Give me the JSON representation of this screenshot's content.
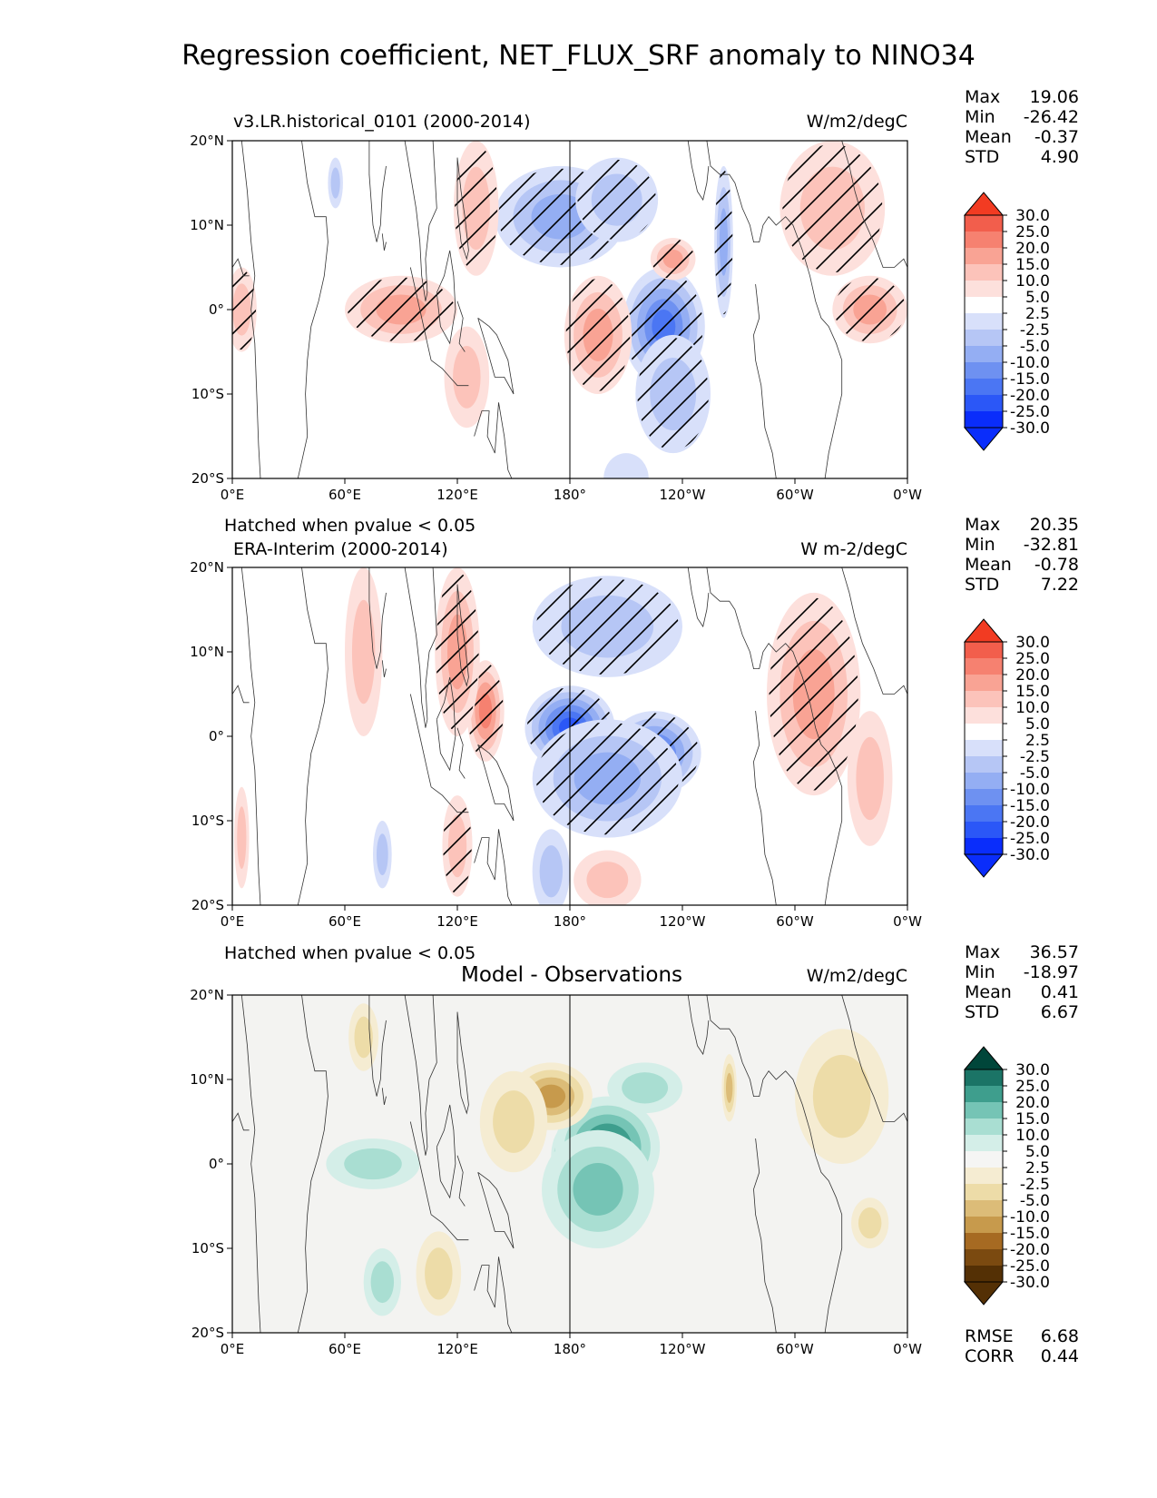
{
  "figure": {
    "title": "Regression coefficient, NET_FLUX_SRF anomaly to NINO34",
    "hatch_note": "Hatched when pvalue < 0.05"
  },
  "colors": {
    "diverging_red_blue": [
      "#0a2dfb",
      "#2b57f7",
      "#4b76f3",
      "#6e91f1",
      "#94aef3",
      "#b6c6f5",
      "#d8e0fa",
      "#ffffff",
      "#fde0dc",
      "#fcc3ba",
      "#f9a394",
      "#f68170",
      "#f25e4c",
      "#f23b22"
    ],
    "diverging_brown_teal": [
      "#543005",
      "#7b4a10",
      "#a66a22",
      "#c79a4c",
      "#dcbc78",
      "#eddca8",
      "#f5ecd2",
      "#f5f5f4",
      "#d4eee8",
      "#a9ded2",
      "#75c4b5",
      "#3e9e8d",
      "#1b7466",
      "#00463a"
    ],
    "coast": "#333333",
    "land_fill_diff": "#f3f3f1"
  },
  "panels": [
    {
      "title": "v3.LR.historical_0101 (2000-2014)",
      "units": "W/m2/degC",
      "stats": [
        {
          "label": "Max",
          "value": "19.06"
        },
        {
          "label": "Min",
          "value": "-26.42"
        },
        {
          "label": "Mean",
          "value": "-0.37"
        },
        {
          "label": "STD",
          "value": "4.90"
        }
      ]
    },
    {
      "title": "ERA-Interim (2000-2014)",
      "units": "W m-2/degC",
      "stats": [
        {
          "label": "Max",
          "value": "20.35"
        },
        {
          "label": "Min",
          "value": "-32.81"
        },
        {
          "label": "Mean",
          "value": "-0.78"
        },
        {
          "label": "STD",
          "value": "7.22"
        }
      ]
    },
    {
      "title": "Model - Observations",
      "units": "W/m2/degC",
      "stats": [
        {
          "label": "Max",
          "value": "36.57"
        },
        {
          "label": "Min",
          "value": "-18.97"
        },
        {
          "label": "Mean",
          "value": "0.41"
        },
        {
          "label": "STD",
          "value": "6.67"
        }
      ],
      "metrics": [
        {
          "label": "RMSE",
          "value": "6.68"
        },
        {
          "label": "CORR",
          "value": "0.44"
        }
      ]
    }
  ],
  "chart_data": [
    {
      "type": "heatmap",
      "title": "v3.LR.historical_0101 (2000-2014)",
      "units": "W/m2/degC",
      "x_range": [
        0,
        360
      ],
      "y_range": [
        -20,
        20
      ],
      "x_ticks": [
        "0°E",
        "60°E",
        "120°E",
        "180°",
        "120°W",
        "60°W",
        "0°W"
      ],
      "y_ticks": [
        "20°N",
        "10°N",
        "0°",
        "10°S",
        "20°S"
      ],
      "colorbar_levels": [
        "30.0",
        "25.0",
        "20.0",
        "15.0",
        "10.0",
        "5.0",
        "2.5",
        "-2.5",
        "-5.0",
        "-10.0",
        "-15.0",
        "-20.0",
        "-25.0",
        "-30.0"
      ],
      "hatched": true,
      "features": [
        {
          "lon": 230,
          "lat": -2,
          "value": -22,
          "rlon": 22,
          "rlat": 7
        },
        {
          "lon": 235,
          "lat": -10,
          "value": -8,
          "rlon": 20,
          "rlat": 7
        },
        {
          "lon": 175,
          "lat": 11,
          "value": -10,
          "rlon": 35,
          "rlat": 6
        },
        {
          "lon": 205,
          "lat": 13,
          "value": -9,
          "rlon": 22,
          "rlat": 5
        },
        {
          "lon": 262,
          "lat": 8,
          "value": -14,
          "rlon": 5,
          "rlat": 9
        },
        {
          "lon": 55,
          "lat": 15,
          "value": -5,
          "rlon": 4,
          "rlat": 3
        },
        {
          "lon": 210,
          "lat": -20,
          "value": -4,
          "rlon": 12,
          "rlat": 3
        },
        {
          "lon": 195,
          "lat": -3,
          "value": 10,
          "rlon": 18,
          "rlat": 7
        },
        {
          "lon": 235,
          "lat": 6,
          "value": 12,
          "rlon": 12,
          "rlat": 2.5
        },
        {
          "lon": 130,
          "lat": 12,
          "value": 9,
          "rlon": 12,
          "rlat": 8
        },
        {
          "lon": 90,
          "lat": 0,
          "value": 11,
          "rlon": 30,
          "rlat": 4
        },
        {
          "lon": 320,
          "lat": 12,
          "value": 9,
          "rlon": 28,
          "rlat": 8
        },
        {
          "lon": 340,
          "lat": 0,
          "value": 10,
          "rlon": 20,
          "rlat": 4
        },
        {
          "lon": 5,
          "lat": 0,
          "value": 9,
          "rlon": 8,
          "rlat": 5
        },
        {
          "lon": 125,
          "lat": -8,
          "value": 7,
          "rlon": 12,
          "rlat": 6
        }
      ]
    },
    {
      "type": "heatmap",
      "title": "ERA-Interim (2000-2014)",
      "units": "W m-2/degC",
      "x_range": [
        0,
        360
      ],
      "y_range": [
        -20,
        20
      ],
      "x_ticks": [
        "0°E",
        "60°E",
        "120°E",
        "180°",
        "120°W",
        "60°W",
        "0°W"
      ],
      "y_ticks": [
        "20°N",
        "10°N",
        "0°",
        "10°S",
        "20°S"
      ],
      "colorbar_levels": [
        "30.0",
        "25.0",
        "20.0",
        "15.0",
        "10.0",
        "5.0",
        "2.5",
        "-2.5",
        "-5.0",
        "-10.0",
        "-15.0",
        "-20.0",
        "-25.0",
        "-30.0"
      ],
      "hatched": true,
      "features": [
        {
          "lon": 180,
          "lat": 1,
          "value": -25,
          "rlon": 24,
          "rlat": 5
        },
        {
          "lon": 225,
          "lat": -2,
          "value": -22,
          "rlon": 25,
          "rlat": 5
        },
        {
          "lon": 200,
          "lat": -5,
          "value": -10,
          "rlon": 40,
          "rlat": 7
        },
        {
          "lon": 200,
          "lat": 13,
          "value": -8,
          "rlon": 40,
          "rlat": 6
        },
        {
          "lon": 170,
          "lat": -16,
          "value": -7,
          "rlon": 10,
          "rlat": 5
        },
        {
          "lon": 80,
          "lat": -14,
          "value": -5,
          "rlon": 5,
          "rlat": 4
        },
        {
          "lon": 135,
          "lat": 3,
          "value": 15,
          "rlon": 10,
          "rlat": 6
        },
        {
          "lon": 120,
          "lat": 10,
          "value": 10,
          "rlon": 12,
          "rlat": 10
        },
        {
          "lon": 70,
          "lat": 10,
          "value": 7,
          "rlon": 10,
          "rlat": 10
        },
        {
          "lon": 310,
          "lat": 5,
          "value": 11,
          "rlon": 25,
          "rlat": 12
        },
        {
          "lon": 340,
          "lat": -5,
          "value": 7,
          "rlon": 12,
          "rlat": 8
        },
        {
          "lon": 200,
          "lat": -17,
          "value": 6,
          "rlon": 18,
          "rlat": 3.5
        },
        {
          "lon": 120,
          "lat": -13,
          "value": 9,
          "rlon": 8,
          "rlat": 6
        },
        {
          "lon": 5,
          "lat": -12,
          "value": 7,
          "rlon": 4,
          "rlat": 6
        }
      ]
    },
    {
      "type": "heatmap",
      "title": "Model - Observations",
      "units": "W/m2/degC",
      "x_range": [
        0,
        360
      ],
      "y_range": [
        -20,
        20
      ],
      "x_ticks": [
        "0°E",
        "60°E",
        "120°E",
        "180°",
        "120°W",
        "60°W",
        "0°W"
      ],
      "y_ticks": [
        "20°N",
        "10°N",
        "0°",
        "10°S",
        "20°S"
      ],
      "colorbar_levels": [
        "30.0",
        "25.0",
        "20.0",
        "15.0",
        "10.0",
        "5.0",
        "2.5",
        "-2.5",
        "-5.0",
        "-10.0",
        "-15.0",
        "-20.0",
        "-25.0",
        "-30.0"
      ],
      "hatched": false,
      "features": [
        {
          "lon": 182,
          "lat": 1,
          "value": 33,
          "rlon": 12,
          "rlat": 4
        },
        {
          "lon": 200,
          "lat": 2,
          "value": 20,
          "rlon": 28,
          "rlat": 6
        },
        {
          "lon": 195,
          "lat": -3,
          "value": 10,
          "rlon": 30,
          "rlat": 7
        },
        {
          "lon": 75,
          "lat": 0,
          "value": 9,
          "rlon": 25,
          "rlat": 3
        },
        {
          "lon": 80,
          "lat": -14,
          "value": 6,
          "rlon": 10,
          "rlat": 4
        },
        {
          "lon": 220,
          "lat": 9,
          "value": 7,
          "rlon": 20,
          "rlat": 3
        },
        {
          "lon": 170,
          "lat": 8,
          "value": -16,
          "rlon": 22,
          "rlat": 4
        },
        {
          "lon": 150,
          "lat": 5,
          "value": -8,
          "rlon": 18,
          "rlat": 6
        },
        {
          "lon": 265,
          "lat": 9,
          "value": -14,
          "rlon": 4,
          "rlat": 4
        },
        {
          "lon": 325,
          "lat": 8,
          "value": -6,
          "rlon": 25,
          "rlat": 8
        },
        {
          "lon": 340,
          "lat": -7,
          "value": -5,
          "rlon": 10,
          "rlat": 3
        },
        {
          "lon": 110,
          "lat": -13,
          "value": -6,
          "rlon": 12,
          "rlat": 5
        },
        {
          "lon": 70,
          "lat": 15,
          "value": -5,
          "rlon": 8,
          "rlat": 4
        }
      ]
    }
  ]
}
